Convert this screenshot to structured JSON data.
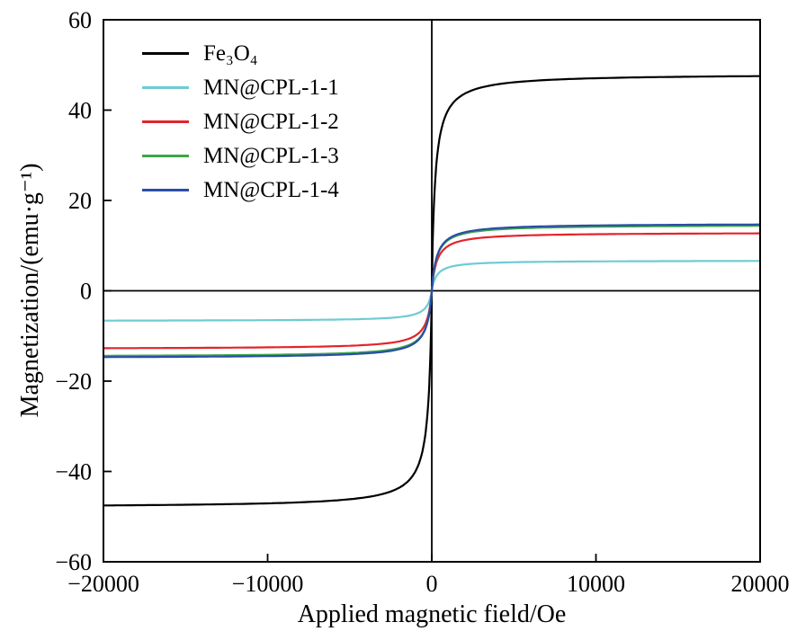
{
  "figure": {
    "background": "#ffffff",
    "axis_color": "#000000"
  },
  "chart_data": {
    "type": "line",
    "title": "",
    "xlabel": "Applied magnetic field/Oe",
    "ylabel": "Magnetization/(emu·g⁻¹)",
    "xlim": [
      -20000,
      20000
    ],
    "ylim": [
      -60,
      60
    ],
    "x_ticks": [
      -20000,
      -10000,
      0,
      10000,
      20000
    ],
    "y_ticks": [
      -60,
      -40,
      -20,
      0,
      20,
      40,
      60
    ],
    "grid": false,
    "zero_lines": true,
    "legend_position": "upper-left",
    "x_sample": [
      -20000,
      -10000,
      -5000,
      -2000,
      -1000,
      -500,
      -200,
      0,
      200,
      500,
      1000,
      2000,
      5000,
      10000,
      20000
    ],
    "series": [
      {
        "name": "Fe3O4",
        "display": "Fe₃O₄",
        "color": "#000000",
        "linewidth": 2.2,
        "saturation_emu_g": 48,
        "knee_oe": 200,
        "values": [
          -47.5,
          -47.1,
          -46.2,
          -43.6,
          -40.0,
          -34.3,
          -24.0,
          0,
          24.0,
          34.3,
          40.0,
          43.6,
          46.2,
          47.1,
          47.5
        ]
      },
      {
        "name": "MN@CPL-1-1",
        "display": "MN@CPL-1-1",
        "color": "#6ecbd4",
        "linewidth": 2.2,
        "saturation_emu_g": 6.7,
        "knee_oe": 300,
        "values": [
          -6.6,
          -6.5,
          -6.3,
          -5.8,
          -5.2,
          -4.2,
          -2.7,
          0,
          2.7,
          4.2,
          5.2,
          5.8,
          6.3,
          6.5,
          6.6
        ]
      },
      {
        "name": "MN@CPL-1-2",
        "display": "MN@CPL-1-2",
        "color": "#e3242b",
        "linewidth": 2.2,
        "saturation_emu_g": 12.9,
        "knee_oe": 300,
        "values": [
          -12.7,
          -12.5,
          -12.2,
          -11.2,
          -9.9,
          -8.1,
          -5.2,
          0,
          5.2,
          8.1,
          9.9,
          11.2,
          12.2,
          12.5,
          12.7
        ]
      },
      {
        "name": "MN@CPL-1-3",
        "display": "MN@CPL-1-3",
        "color": "#39a845",
        "linewidth": 2.2,
        "saturation_emu_g": 14.6,
        "knee_oe": 300,
        "values": [
          -14.4,
          -14.2,
          -13.8,
          -12.7,
          -11.2,
          -9.1,
          -5.8,
          0,
          5.8,
          9.1,
          11.2,
          12.7,
          13.8,
          14.2,
          14.4
        ]
      },
      {
        "name": "MN@CPL-1-4",
        "display": "MN@CPL-1-4",
        "color": "#2b4da8",
        "linewidth": 2.2,
        "saturation_emu_g": 14.9,
        "knee_oe": 300,
        "values": [
          -14.7,
          -14.5,
          -14.1,
          -13.0,
          -11.5,
          -9.3,
          -6.0,
          0,
          6.0,
          9.3,
          11.5,
          13.0,
          14.1,
          14.5,
          14.7
        ]
      }
    ]
  }
}
